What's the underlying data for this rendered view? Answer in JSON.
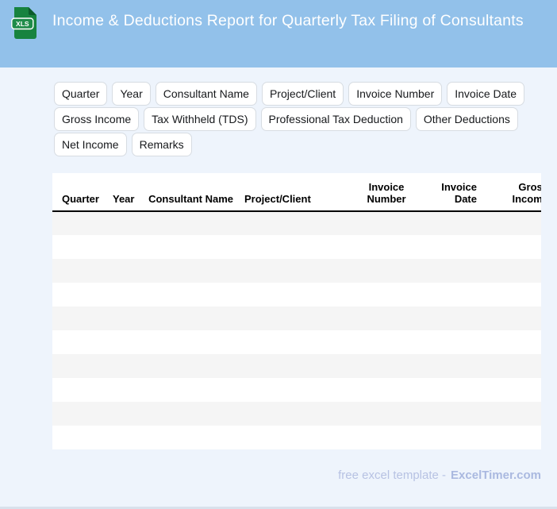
{
  "header": {
    "title": "Income & Deductions Report for Quarterly Tax Filing of Consultants",
    "icon_label": "XLS",
    "bg_color": "#92c1ea",
    "icon_color": "#17833f"
  },
  "chips": [
    "Quarter",
    "Year",
    "Consultant Name",
    "Project/Client",
    "Invoice Number",
    "Invoice Date",
    "Gross Income",
    "Tax Withheld (TDS)",
    "Professional Tax Deduction",
    "Other Deductions",
    "Net Income",
    "Remarks"
  ],
  "table": {
    "columns": [
      {
        "label": "Quarter",
        "align": "left"
      },
      {
        "label": "Year",
        "align": "left"
      },
      {
        "label": "Consultant Name",
        "align": "right"
      },
      {
        "label": "Project/Client",
        "align": "left"
      },
      {
        "label": "Invoice Number",
        "align": "center"
      },
      {
        "label": "Invoice Date",
        "align": "right"
      },
      {
        "label": "Gross Income",
        "align": "right"
      }
    ],
    "empty_row_count": 10,
    "stripe_color": "#f5f5f5"
  },
  "footer": {
    "text": "free excel template -",
    "brand": "ExcelTimer.com"
  }
}
